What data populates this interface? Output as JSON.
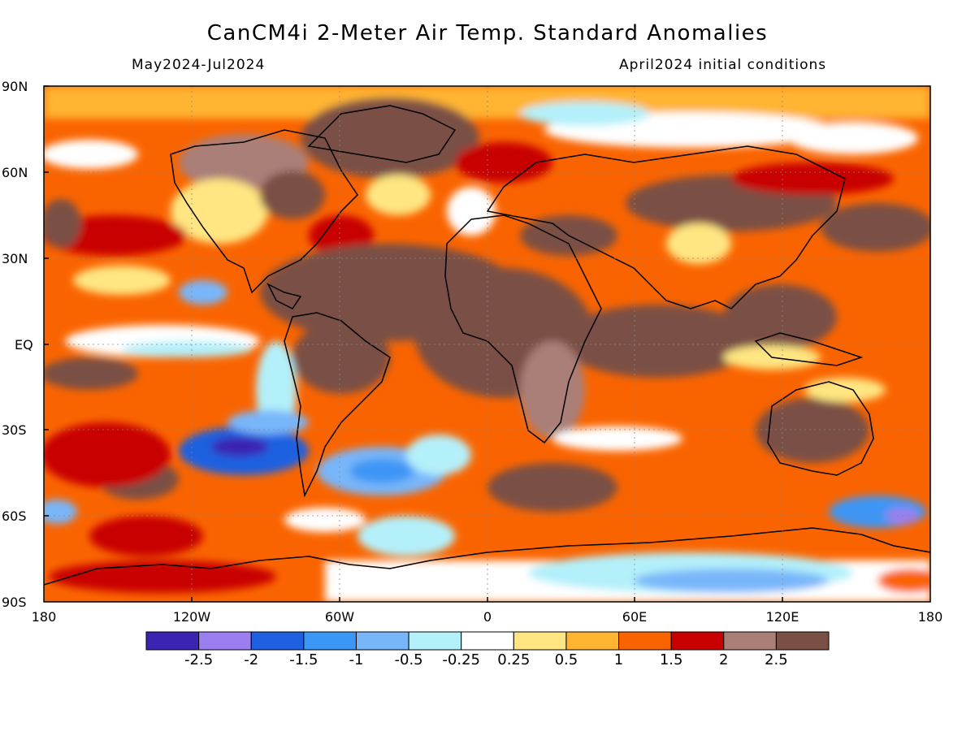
{
  "title": "CanCM4i 2-Meter Air Temp. Standard Anomalies",
  "subtitle_left": "May2024-Jul2024",
  "subtitle_right": "April2024 initial conditions",
  "lat_labels": [
    "90N",
    "60N",
    "30N",
    "EQ",
    "30S",
    "60S",
    "90S"
  ],
  "lon_labels": [
    "180",
    "120W",
    "60W",
    "0",
    "60E",
    "120E",
    "180"
  ],
  "legend": {
    "colors": [
      "#3b24b4",
      "#9b7ff0",
      "#1e60e0",
      "#3c96f5",
      "#78b6fa",
      "#b4f0fa",
      "#ffffff",
      "#ffe682",
      "#ffb432",
      "#fa6400",
      "#c80000",
      "#aa7f78",
      "#7a5045"
    ],
    "labels": [
      "-2.5",
      "-2",
      "-1.5",
      "-1",
      "-0.5",
      "-0.25",
      "0.25",
      "0.5",
      "1",
      "1.5",
      "2",
      "2.5"
    ]
  },
  "map_description_palette": {
    "background_warm": "#ffb432",
    "ocean_dominant": "#fa6400",
    "hot_land": "#7a5045"
  }
}
